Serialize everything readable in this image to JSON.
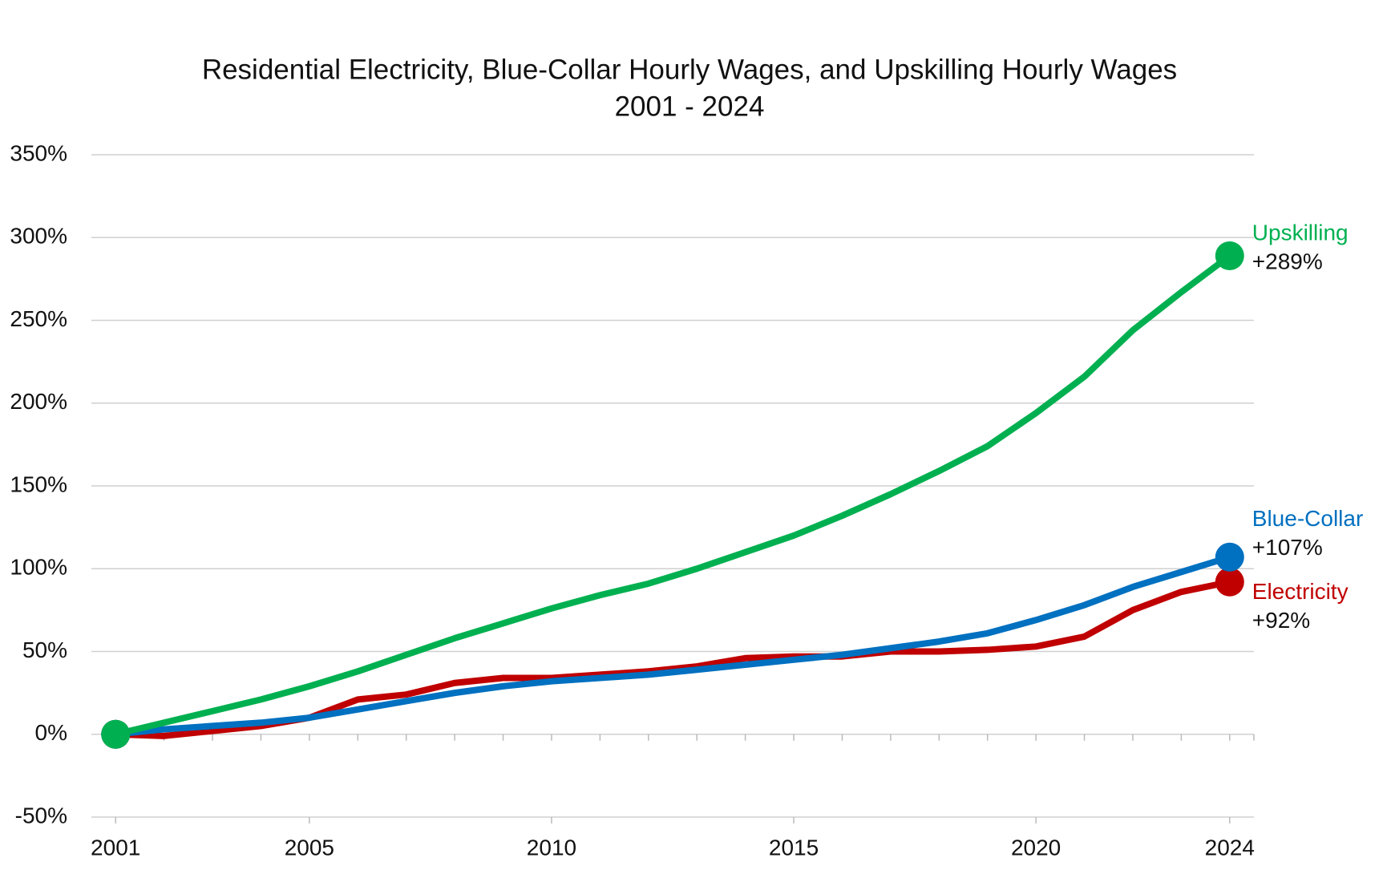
{
  "chart_data": {
    "type": "line",
    "title": "Residential Electricity, Blue-Collar Hourly Wages, and Upskilling Hourly Wages",
    "subtitle": "2001 - 2024",
    "x": [
      2001,
      2002,
      2003,
      2004,
      2005,
      2006,
      2007,
      2008,
      2009,
      2010,
      2011,
      2012,
      2013,
      2014,
      2015,
      2016,
      2017,
      2018,
      2019,
      2020,
      2021,
      2022,
      2023,
      2024
    ],
    "series": [
      {
        "name": "Electricity",
        "color": "#c00000",
        "values": [
          0,
          -1,
          2,
          5,
          10,
          21,
          24,
          31,
          34,
          34,
          36,
          38,
          41,
          46,
          47,
          47,
          50,
          50,
          51,
          53,
          59,
          75,
          86,
          92
        ],
        "value_labels": [
          null,
          null,
          null,
          null,
          null,
          null,
          null,
          null,
          null,
          null,
          null,
          null,
          null,
          null,
          null,
          null,
          null,
          null,
          null,
          null,
          null,
          null,
          null,
          "+92%"
        ]
      },
      {
        "name": "Blue-Collar",
        "color": "#0070c0",
        "values": [
          0,
          3,
          5,
          7,
          10,
          15,
          20,
          25,
          29,
          32,
          34,
          36,
          39,
          42,
          45,
          48,
          52,
          56,
          61,
          69,
          78,
          89,
          98,
          107
        ],
        "value_labels": [
          null,
          null,
          null,
          null,
          null,
          null,
          null,
          null,
          null,
          null,
          null,
          null,
          null,
          null,
          null,
          null,
          null,
          null,
          null,
          null,
          null,
          null,
          null,
          "+107%"
        ]
      },
      {
        "name": "Upskilling",
        "color": "#00b050",
        "values": [
          0,
          7,
          14,
          21,
          29,
          38,
          48,
          58,
          67,
          76,
          84,
          91,
          100,
          110,
          120,
          132,
          145,
          159,
          174,
          194,
          216,
          244,
          267,
          289
        ],
        "value_labels": [
          null,
          null,
          null,
          null,
          null,
          null,
          null,
          null,
          null,
          null,
          null,
          null,
          null,
          null,
          null,
          null,
          null,
          null,
          null,
          null,
          null,
          null,
          null,
          "+289%"
        ]
      }
    ],
    "xlim": [
      2000.5,
      2024.5
    ],
    "xticks": [
      2001,
      2005,
      2010,
      2015,
      2020,
      2024
    ],
    "ylim": [
      -50,
      350
    ],
    "yticks": [
      {
        "value": -50,
        "label": "-50%"
      },
      {
        "value": 0,
        "label": "0%"
      },
      {
        "value": 50,
        "label": "50%"
      },
      {
        "value": 100,
        "label": "100%"
      },
      {
        "value": 150,
        "label": "150%"
      },
      {
        "value": 200,
        "label": "200%"
      },
      {
        "value": 250,
        "label": "250%"
      },
      {
        "value": 300,
        "label": "300%"
      },
      {
        "value": 350,
        "label": "350%"
      }
    ],
    "grid": true
  }
}
